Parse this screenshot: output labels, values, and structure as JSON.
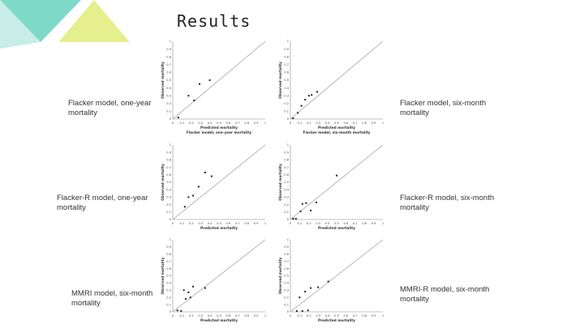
{
  "slide": {
    "title": "Results"
  },
  "labels": {
    "a": "Flacker model, one-year mortality",
    "b": "Flacker model, six-month mortality",
    "c": "Flacker-R model, one-year mortality",
    "d": "Flacker-R model, six-month mortality",
    "e": "MMRI model, six-month mortality",
    "f": "MMRI-R model, six-month mortality"
  },
  "colors": {
    "decoration_teal": "#7fd9c9",
    "decoration_light_teal": "#c8ede6",
    "decoration_yellow": "#e6ef8e",
    "points": "#222222",
    "diagonal": "#9a9a9a",
    "axis": "#888888"
  },
  "chart_data": [
    {
      "type": "scatter",
      "title": "",
      "xlabel": "Predicted mortality",
      "ylabel": "Observed mortality",
      "subtitle": "Flacker model, one-year mortality",
      "ticks": [
        "0",
        "0.1",
        "0.2",
        "0.3",
        "0.4",
        "0.5",
        "0.6",
        "0.7",
        "0.8",
        "0.9",
        "1"
      ],
      "xlim": [
        0,
        1
      ],
      "ylim": [
        0,
        1
      ],
      "diagonal": true,
      "x": [
        0.06,
        0.17,
        0.23,
        0.29,
        0.4
      ],
      "y": [
        0.02,
        0.3,
        0.24,
        0.45,
        0.5
      ]
    },
    {
      "type": "scatter",
      "title": "",
      "xlabel": "Predicted mortality",
      "ylabel": "Observed mortality",
      "subtitle": "Flacker model, six-month mortality",
      "ticks": [
        "0",
        "0.1",
        "0.2",
        "0.3",
        "0.4",
        "0.5",
        "0.6",
        "0.7",
        "0.8",
        "0.9",
        "1"
      ],
      "xlim": [
        0,
        1
      ],
      "ylim": [
        0,
        1
      ],
      "diagonal": true,
      "x": [
        0.03,
        0.08,
        0.12,
        0.16,
        0.2,
        0.23,
        0.29
      ],
      "y": [
        0.01,
        0.08,
        0.17,
        0.25,
        0.3,
        0.31,
        0.35
      ]
    },
    {
      "type": "scatter",
      "title": "",
      "xlabel": "Predicted mortality",
      "ylabel": "Observed mortality",
      "subtitle": "",
      "ticks": [
        "0",
        "0.1",
        "0.2",
        "0.3",
        "0.4",
        "0.5",
        "0.6",
        "0.7",
        "0.8",
        "0.9",
        "1"
      ],
      "xlim": [
        0,
        1
      ],
      "ylim": [
        0,
        1
      ],
      "diagonal": true,
      "x": [
        0.13,
        0.17,
        0.22,
        0.28,
        0.35,
        0.42
      ],
      "y": [
        0.17,
        0.3,
        0.32,
        0.44,
        0.63,
        0.58
      ]
    },
    {
      "type": "scatter",
      "title": "",
      "xlabel": "Predicted mortality",
      "ylabel": "Observed mortality",
      "subtitle": "",
      "ticks": [
        "0",
        "0.1",
        "0.2",
        "0.3",
        "0.4",
        "0.5",
        "0.6",
        "0.7",
        "0.8",
        "0.9",
        "1"
      ],
      "xlim": [
        0,
        1
      ],
      "ylim": [
        0,
        1
      ],
      "diagonal": true,
      "x": [
        0.03,
        0.06,
        0.11,
        0.13,
        0.17,
        0.22,
        0.28,
        0.5
      ],
      "y": [
        0.01,
        0.01,
        0.11,
        0.21,
        0.22,
        0.12,
        0.23,
        0.59
      ]
    },
    {
      "type": "scatter",
      "title": "",
      "xlabel": "Predicted mortality",
      "ylabel": "Observed mortality",
      "subtitle": "",
      "ticks": [
        "0",
        "0.1",
        "0.2",
        "0.3",
        "0.4",
        "0.5",
        "0.6",
        "0.7",
        "0.8",
        "0.9",
        "1"
      ],
      "xlim": [
        0,
        1
      ],
      "ylim": [
        0,
        1
      ],
      "diagonal": true,
      "x": [
        0.05,
        0.09,
        0.12,
        0.14,
        0.17,
        0.19,
        0.22,
        0.35
      ],
      "y": [
        0.02,
        0.01,
        0.3,
        0.18,
        0.27,
        0.2,
        0.35,
        0.33
      ]
    },
    {
      "type": "scatter",
      "title": "",
      "xlabel": "Predicted mortality",
      "ylabel": "Observed mortality",
      "subtitle": "",
      "ticks": [
        "0",
        "0.1",
        "0.2",
        "0.3",
        "0.4",
        "0.5",
        "0.6",
        "0.7",
        "0.8",
        "0.9",
        "1"
      ],
      "xlim": [
        0,
        1
      ],
      "ylim": [
        0,
        1
      ],
      "diagonal": true,
      "x": [
        0.07,
        0.1,
        0.13,
        0.16,
        0.19,
        0.22,
        0.3,
        0.41
      ],
      "y": [
        0.01,
        0.2,
        0.01,
        0.28,
        0.02,
        0.33,
        0.34,
        0.42
      ]
    }
  ]
}
